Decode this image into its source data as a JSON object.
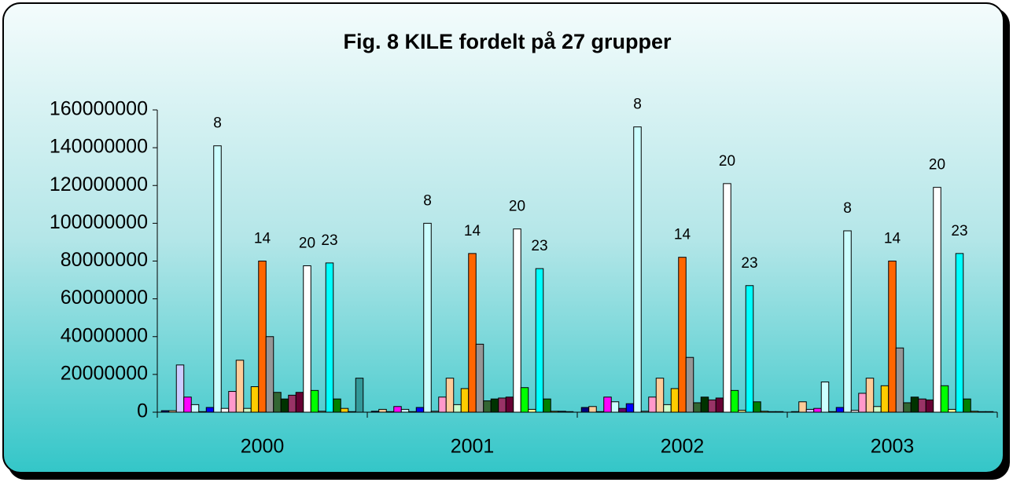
{
  "chart_data": {
    "type": "bar",
    "title": "Fig. 8 KILE fordelt på 27 grupper",
    "categories": [
      "2000",
      "2001",
      "2002",
      "2003"
    ],
    "ylim": [
      0,
      160000000
    ],
    "yticks": [
      0,
      20000000,
      40000000,
      60000000,
      80000000,
      100000000,
      120000000,
      140000000,
      160000000
    ],
    "series": [
      {
        "color": "#000080",
        "values": [
          800000,
          500000,
          2500000,
          300000
        ]
      },
      {
        "color": "#ffcc99",
        "values": [
          800000,
          1500000,
          3000000,
          5500000
        ]
      },
      {
        "color": "#ccccff",
        "values": [
          25000000,
          300000,
          300000,
          1500000
        ]
      },
      {
        "color": "#ff00ff",
        "values": [
          8000000,
          3000000,
          8000000,
          2000000
        ]
      },
      {
        "color": "#ccffff",
        "values": [
          4000000,
          1500000,
          5500000,
          16000000
        ]
      },
      {
        "color": "#660066",
        "values": [
          300000,
          300000,
          2000000,
          300000
        ]
      },
      {
        "color": "#0000ff",
        "values": [
          2500000,
          2500000,
          4500000,
          2500000
        ]
      },
      {
        "name": "8",
        "color": "#ccffff",
        "values": [
          141000000,
          100000000,
          151000000,
          96000000
        ]
      },
      {
        "color": "#ffffff",
        "values": [
          2000000,
          500000,
          500000,
          1000000
        ]
      },
      {
        "color": "#ff99cc",
        "values": [
          11000000,
          8000000,
          8000000,
          10000000
        ]
      },
      {
        "color": "#ffcc99",
        "values": [
          27500000,
          18000000,
          18000000,
          18000000
        ]
      },
      {
        "color": "#ccffcc",
        "values": [
          2000000,
          4000000,
          4000000,
          3000000
        ]
      },
      {
        "color": "#ffcc00",
        "values": [
          13500000,
          12500000,
          12500000,
          14000000
        ]
      },
      {
        "name": "14",
        "color": "#ff6600",
        "values": [
          80000000,
          84000000,
          82000000,
          80000000
        ]
      },
      {
        "color": "#969696",
        "values": [
          40000000,
          36000000,
          29000000,
          34000000
        ]
      },
      {
        "color": "#336633",
        "values": [
          10500000,
          6000000,
          5000000,
          5000000
        ]
      },
      {
        "color": "#003300",
        "values": [
          7000000,
          7000000,
          8000000,
          8000000
        ]
      },
      {
        "color": "#993366",
        "values": [
          9000000,
          7500000,
          6500000,
          7000000
        ]
      },
      {
        "color": "#660033",
        "values": [
          10500000,
          8000000,
          7500000,
          6500000
        ]
      },
      {
        "name": "20",
        "color": "#ffffff",
        "values": [
          77500000,
          97000000,
          121000000,
          119000000
        ]
      },
      {
        "color": "#00ff00",
        "values": [
          11500000,
          13000000,
          11500000,
          14000000
        ]
      },
      {
        "color": "#ffff99",
        "values": [
          500000,
          1500000,
          1000000,
          1500000
        ]
      },
      {
        "name": "23",
        "color": "#00ffff",
        "values": [
          79000000,
          76000000,
          67000000,
          84000000
        ]
      },
      {
        "color": "#008000",
        "values": [
          7000000,
          7000000,
          5500000,
          7000000
        ]
      },
      {
        "color": "#ffcc00",
        "values": [
          2000000,
          500000,
          500000,
          500000
        ]
      },
      {
        "color": "#003366",
        "values": [
          300000,
          500000,
          300000,
          300000
        ]
      },
      {
        "color": "#339999",
        "values": [
          18000000,
          300000,
          300000,
          300000
        ]
      }
    ]
  }
}
